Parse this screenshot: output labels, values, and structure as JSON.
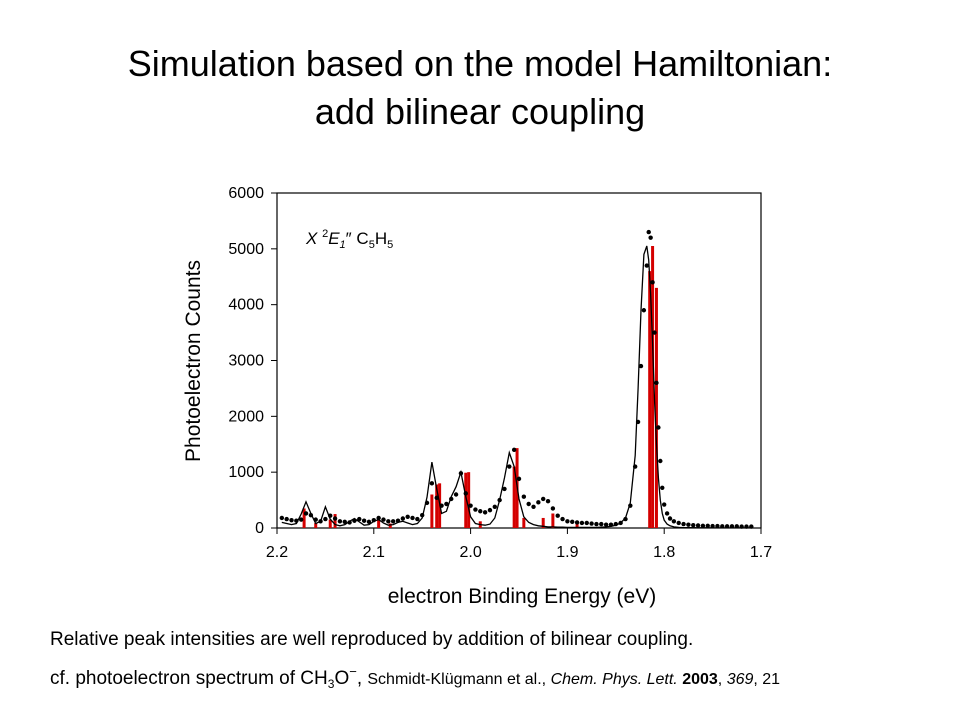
{
  "slide": {
    "title_line1": "Simulation based on the model Hamiltonian:",
    "title_line2": "add bilinear coupling"
  },
  "footer": {
    "line1": "Relative peak intensities are well reproduced by addition of bilinear coupling.",
    "line2": {
      "prefix": "cf. photoelectron spectrum of CH",
      "sub3": "3",
      "O": "O",
      "sup_minus": "−",
      "comma": ", ",
      "authors": "Schmidt-Klügmann et al., ",
      "journal": "Chem. Phys. Lett.",
      "sp1": " ",
      "year": "2003",
      "sep1": ", ",
      "volume": "369",
      "sep2": ", ",
      "page": "21"
    }
  },
  "chart_data": {
    "type": "line",
    "annotation": {
      "X": "X ",
      "sup2": "2",
      "E": "E",
      "sub1": "1",
      "prime": "″ ",
      "C": "C",
      "sub5a": "5",
      "H": "H",
      "sub5b": "5"
    },
    "xlabel": "electron Binding Energy (eV)",
    "ylabel": "Photoelectron Counts",
    "xlim": [
      2.2,
      1.7
    ],
    "ylim": [
      0,
      6000
    ],
    "x_reversed": true,
    "x_ticks": [
      "2.2",
      "2.1",
      "2.0",
      "1.9",
      "1.8",
      "1.7"
    ],
    "x_tick_values": [
      2.2,
      2.1,
      2.0,
      1.9,
      1.8,
      1.7
    ],
    "y_ticks": [
      "0",
      "1000",
      "2000",
      "3000",
      "4000",
      "5000",
      "6000"
    ],
    "y_tick_values": [
      0,
      1000,
      2000,
      3000,
      4000,
      5000,
      6000
    ],
    "grid": false,
    "colors": {
      "sticks": "#d40000",
      "curve": "#000000",
      "points": "#000000"
    },
    "series": [
      {
        "role": "experimental points",
        "x": [
          2.195,
          2.19,
          2.185,
          2.18,
          2.175,
          2.17,
          2.165,
          2.16,
          2.155,
          2.15,
          2.145,
          2.14,
          2.135,
          2.13,
          2.125,
          2.12,
          2.115,
          2.11,
          2.105,
          2.1,
          2.095,
          2.09,
          2.085,
          2.08,
          2.075,
          2.07,
          2.065,
          2.06,
          2.055,
          2.05,
          2.045,
          2.04,
          2.035,
          2.03,
          2.025,
          2.02,
          2.015,
          2.01,
          2.005,
          2.0,
          1.995,
          1.99,
          1.985,
          1.98,
          1.975,
          1.97,
          1.965,
          1.96,
          1.955,
          1.95,
          1.945,
          1.94,
          1.935,
          1.93,
          1.925,
          1.92,
          1.915,
          1.91,
          1.905,
          1.9,
          1.895,
          1.89,
          1.885,
          1.88,
          1.875,
          1.87,
          1.865,
          1.86,
          1.855,
          1.85,
          1.845,
          1.84,
          1.835,
          1.83,
          1.827,
          1.824,
          1.821,
          1.818,
          1.816,
          1.814,
          1.812,
          1.81,
          1.808,
          1.806,
          1.804,
          1.802,
          1.8,
          1.797,
          1.794,
          1.79,
          1.785,
          1.78,
          1.775,
          1.77,
          1.765,
          1.76,
          1.755,
          1.75,
          1.745,
          1.74,
          1.735,
          1.73,
          1.725,
          1.72,
          1.715,
          1.71
        ],
        "y": [
          180,
          160,
          140,
          130,
          150,
          260,
          230,
          150,
          120,
          160,
          220,
          170,
          120,
          110,
          100,
          130,
          160,
          130,
          110,
          140,
          180,
          150,
          120,
          120,
          130,
          170,
          200,
          180,
          160,
          230,
          450,
          800,
          540,
          400,
          430,
          520,
          600,
          980,
          620,
          400,
          330,
          300,
          280,
          320,
          380,
          500,
          700,
          1100,
          1400,
          880,
          560,
          430,
          380,
          460,
          520,
          480,
          350,
          220,
          160,
          120,
          110,
          100,
          90,
          90,
          80,
          70,
          70,
          60,
          60,
          70,
          90,
          160,
          400,
          1100,
          1900,
          2900,
          3900,
          4700,
          5300,
          5200,
          4400,
          3500,
          2600,
          1800,
          1200,
          720,
          420,
          260,
          170,
          120,
          90,
          70,
          60,
          50,
          45,
          40,
          40,
          35,
          35,
          30,
          30,
          30,
          30,
          25,
          25,
          25
        ]
      },
      {
        "role": "simulated spectrum",
        "x": [
          2.195,
          2.19,
          2.185,
          2.18,
          2.175,
          2.17,
          2.165,
          2.16,
          2.155,
          2.15,
          2.145,
          2.14,
          2.135,
          2.13,
          2.125,
          2.12,
          2.115,
          2.11,
          2.105,
          2.1,
          2.095,
          2.09,
          2.085,
          2.08,
          2.075,
          2.07,
          2.065,
          2.06,
          2.055,
          2.05,
          2.045,
          2.04,
          2.035,
          2.03,
          2.025,
          2.02,
          2.015,
          2.01,
          2.005,
          2.0,
          1.995,
          1.99,
          1.985,
          1.98,
          1.975,
          1.97,
          1.965,
          1.96,
          1.955,
          1.95,
          1.945,
          1.94,
          1.935,
          1.93,
          1.925,
          1.92,
          1.915,
          1.91,
          1.905,
          1.9,
          1.895,
          1.89,
          1.885,
          1.88,
          1.875,
          1.87,
          1.865,
          1.86,
          1.855,
          1.85,
          1.845,
          1.84,
          1.835,
          1.83,
          1.827,
          1.824,
          1.821,
          1.818,
          1.816,
          1.814,
          1.812,
          1.81,
          1.808,
          1.806,
          1.804,
          1.802,
          1.8,
          1.797,
          1.794,
          1.79,
          1.785,
          1.78,
          1.775,
          1.77,
          1.765,
          1.76,
          1.755,
          1.75,
          1.745,
          1.74,
          1.735,
          1.73,
          1.725,
          1.72,
          1.715,
          1.71
        ],
        "y": [
          100,
          80,
          60,
          80,
          250,
          470,
          260,
          80,
          120,
          380,
          160,
          60,
          40,
          60,
          120,
          170,
          110,
          50,
          60,
          120,
          150,
          90,
          50,
          60,
          100,
          120,
          90,
          60,
          80,
          180,
          550,
          1180,
          700,
          260,
          300,
          560,
          740,
          1000,
          560,
          200,
          80,
          60,
          50,
          70,
          180,
          500,
          900,
          1350,
          1100,
          520,
          200,
          100,
          60,
          40,
          30,
          20,
          20,
          15,
          15,
          10,
          10,
          10,
          10,
          10,
          10,
          10,
          15,
          20,
          30,
          50,
          90,
          180,
          450,
          1300,
          2500,
          3900,
          4900,
          5050,
          4800,
          4200,
          3300,
          2300,
          1500,
          900,
          500,
          260,
          140,
          70,
          40,
          20,
          10,
          8,
          6,
          5,
          4,
          3,
          3,
          2,
          2,
          2,
          2,
          2,
          2,
          2,
          2,
          2
        ]
      },
      {
        "role": "stick spectrum",
        "x": [
          2.172,
          2.16,
          2.145,
          2.14,
          2.095,
          2.083,
          2.04,
          2.035,
          2.032,
          2.005,
          2.002,
          1.99,
          1.955,
          1.952,
          1.945,
          1.925,
          1.915,
          1.89,
          1.815,
          1.812,
          1.808
        ],
        "y": [
          350,
          90,
          150,
          250,
          150,
          80,
          600,
          780,
          800,
          990,
          1000,
          120,
          1100,
          1430,
          180,
          180,
          260,
          80,
          4600,
          5050,
          4300
        ]
      }
    ]
  }
}
